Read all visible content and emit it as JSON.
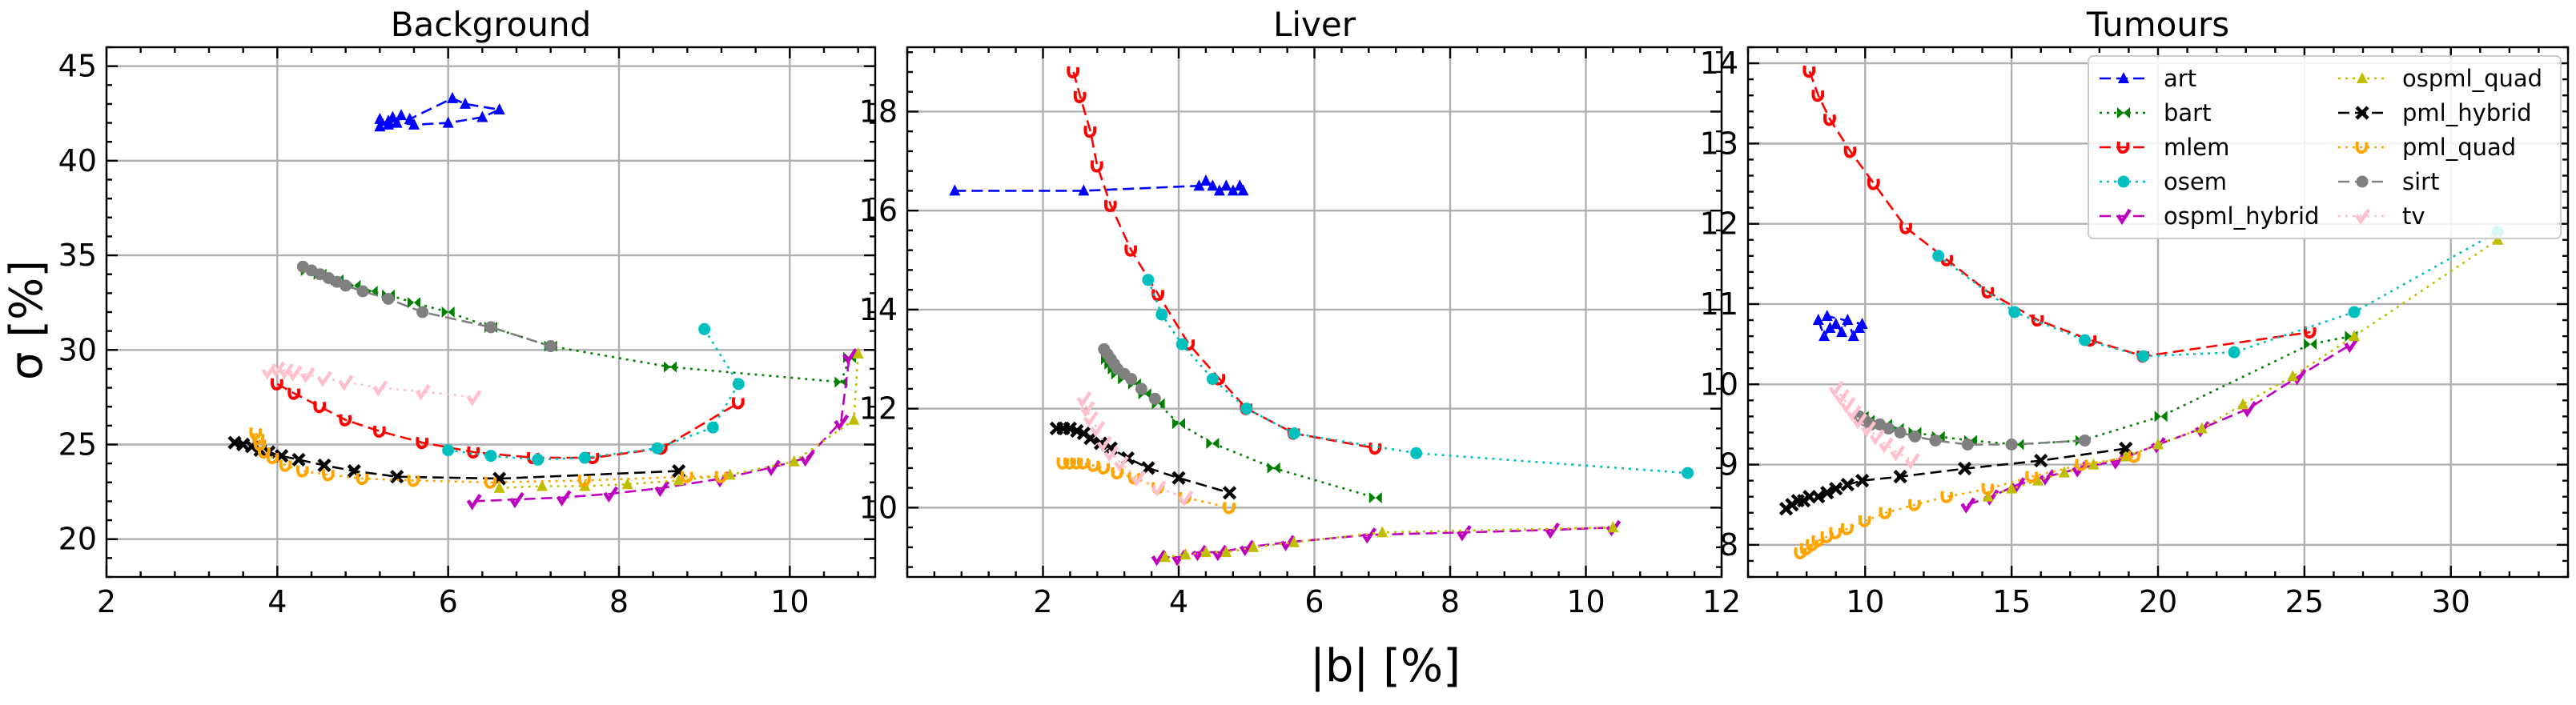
{
  "figure": {
    "shared_xlabel": "|b| [%]",
    "shared_ylabel": "σ [%]"
  },
  "legend": {
    "position": "upper right of Tumours panel",
    "entries": [
      {
        "name": "art",
        "color": "#0000ff",
        "dash": "dashed",
        "marker": "tri"
      },
      {
        "name": "bart",
        "color": "#008000",
        "dash": "dotted",
        "marker": "bowtie"
      },
      {
        "name": "mlem",
        "color": "#ff0000",
        "dash": "dashed",
        "marker": "hook"
      },
      {
        "name": "osem",
        "color": "#00bfbf",
        "dash": "dotted",
        "marker": "circle"
      },
      {
        "name": "ospml_hybrid",
        "color": "#bf00bf",
        "dash": "dashed",
        "marker": "tick"
      },
      {
        "name": "ospml_quad",
        "color": "#bfbf00",
        "dash": "dotted",
        "marker": "tri"
      },
      {
        "name": "pml_hybrid",
        "color": "#000000",
        "dash": "dashed",
        "marker": "x"
      },
      {
        "name": "pml_quad",
        "color": "#ffa500",
        "dash": "dotted",
        "marker": "hook"
      },
      {
        "name": "sirt",
        "color": "#808080",
        "dash": "dashed",
        "marker": "circle"
      },
      {
        "name": "tv",
        "color": "#ffc0cb",
        "dash": "dotted",
        "marker": "tick"
      }
    ]
  },
  "chart_data": [
    {
      "type": "line",
      "title": "Background",
      "xlabel": "|b| [%]",
      "ylabel": "σ [%]",
      "xlim": [
        2,
        11
      ],
      "ylim": [
        18,
        46
      ],
      "xticks": [
        "2",
        "4",
        "6",
        "8",
        "10"
      ],
      "yticks": [
        "20",
        "25",
        "30",
        "35",
        "40",
        "45"
      ],
      "xtick_values": [
        2,
        4,
        6,
        8,
        10
      ],
      "ytick_values": [
        20,
        25,
        30,
        35,
        40,
        45
      ],
      "grid": true,
      "series": [
        {
          "name": "art",
          "x": [
            5.2,
            5.3,
            5.35,
            5.4,
            5.45,
            5.3,
            5.2,
            5.6,
            6.0,
            6.4,
            6.6,
            6.2,
            6.05,
            5.55
          ],
          "y": [
            41.8,
            42.1,
            42.3,
            42.0,
            42.4,
            41.9,
            42.2,
            41.9,
            42.0,
            42.3,
            42.7,
            43.0,
            43.3,
            42.2
          ]
        },
        {
          "name": "bart",
          "x": [
            4.35,
            4.5,
            4.7,
            4.9,
            5.1,
            5.3,
            5.6,
            6.0,
            6.5,
            7.2,
            8.6,
            10.6,
            10.7
          ],
          "y": [
            34.2,
            34.0,
            33.7,
            33.4,
            33.1,
            32.9,
            32.5,
            32.0,
            31.2,
            30.2,
            29.1,
            28.3,
            29.6
          ]
        },
        {
          "name": "mlem",
          "x": [
            4.0,
            4.2,
            4.5,
            4.8,
            5.2,
            5.7,
            6.3,
            7.0,
            7.7,
            8.5,
            9.4
          ],
          "y": [
            28.2,
            27.7,
            27.0,
            26.3,
            25.7,
            25.1,
            24.6,
            24.3,
            24.3,
            24.8,
            27.2
          ]
        },
        {
          "name": "osem",
          "x": [
            6.0,
            6.5,
            7.05,
            7.6,
            8.45,
            9.1,
            9.4,
            9.0
          ],
          "y": [
            24.7,
            24.4,
            24.2,
            24.3,
            24.8,
            25.9,
            28.2,
            31.1
          ]
        },
        {
          "name": "ospml_hybrid",
          "x": [
            6.3,
            6.8,
            7.35,
            7.9,
            8.5,
            9.2,
            9.8,
            10.2,
            10.6,
            10.7
          ],
          "y": [
            22.0,
            22.1,
            22.2,
            22.4,
            22.7,
            23.2,
            23.8,
            24.3,
            26.2,
            29.7
          ]
        },
        {
          "name": "ospml_quad",
          "x": [
            6.6,
            7.1,
            7.6,
            8.1,
            8.7,
            9.3,
            10.05,
            10.75,
            10.8
          ],
          "y": [
            22.7,
            22.8,
            22.8,
            22.9,
            23.1,
            23.4,
            24.1,
            26.3,
            29.8
          ]
        },
        {
          "name": "pml_hybrid",
          "x": [
            3.5,
            3.6,
            3.7,
            3.8,
            3.9,
            4.05,
            4.25,
            4.55,
            4.9,
            5.4,
            6.6,
            8.7
          ],
          "y": [
            25.1,
            25.0,
            24.9,
            24.7,
            24.6,
            24.4,
            24.2,
            23.9,
            23.6,
            23.3,
            23.2,
            23.6
          ]
        },
        {
          "name": "pml_quad",
          "x": [
            3.75,
            3.78,
            3.8,
            3.85,
            3.95,
            4.1,
            4.3,
            4.6,
            5.0,
            5.6,
            6.5,
            7.6,
            8.8,
            9.2
          ],
          "y": [
            25.6,
            25.3,
            25.0,
            24.6,
            24.3,
            23.9,
            23.6,
            23.4,
            23.2,
            23.1,
            23.0,
            23.1,
            23.3,
            23.3
          ]
        },
        {
          "name": "sirt",
          "x": [
            4.3,
            4.4,
            4.5,
            4.6,
            4.7,
            4.8,
            5.0,
            5.3,
            5.7,
            6.5,
            7.2
          ],
          "y": [
            34.4,
            34.2,
            34.0,
            33.8,
            33.6,
            33.4,
            33.1,
            32.7,
            32.0,
            31.2,
            30.2
          ]
        },
        {
          "name": "tv",
          "x": [
            3.9,
            4.0,
            4.1,
            4.2,
            4.35,
            4.55,
            4.8,
            5.2,
            5.7,
            6.3
          ],
          "y": [
            28.9,
            29.0,
            28.9,
            28.8,
            28.7,
            28.5,
            28.3,
            28.0,
            27.8,
            27.5
          ]
        }
      ]
    },
    {
      "type": "line",
      "title": "Liver",
      "xlabel": "|b| [%]",
      "ylabel": "σ [%]",
      "xlim": [
        0,
        12
      ],
      "ylim": [
        8.6,
        19.3
      ],
      "xticks": [
        "2",
        "4",
        "6",
        "8",
        "10",
        "12"
      ],
      "yticks": [
        "10",
        "12",
        "14",
        "16",
        "18"
      ],
      "xtick_values": [
        2,
        4,
        6,
        8,
        10,
        12
      ],
      "ytick_values": [
        10,
        12,
        14,
        16,
        18
      ],
      "grid": true,
      "series": [
        {
          "name": "art",
          "x": [
            0.7,
            2.6,
            4.3,
            4.4,
            4.5,
            4.6,
            4.7,
            4.8,
            4.9,
            4.95
          ],
          "y": [
            16.4,
            16.4,
            16.5,
            16.6,
            16.5,
            16.4,
            16.5,
            16.4,
            16.5,
            16.4
          ]
        },
        {
          "name": "bart",
          "x": [
            2.95,
            3.0,
            3.05,
            3.1,
            3.2,
            3.35,
            3.5,
            3.7,
            4.0,
            4.5,
            5.4,
            6.9
          ],
          "y": [
            13.0,
            12.9,
            12.8,
            12.7,
            12.6,
            12.5,
            12.3,
            12.1,
            11.7,
            11.3,
            10.8,
            10.2
          ]
        },
        {
          "name": "mlem",
          "x": [
            2.45,
            2.55,
            2.7,
            2.8,
            3.0,
            3.3,
            3.7,
            4.15,
            4.6,
            5.0,
            5.7,
            6.9
          ],
          "y": [
            18.8,
            18.3,
            17.6,
            16.9,
            16.1,
            15.2,
            14.3,
            13.3,
            12.6,
            12.0,
            11.5,
            11.2
          ]
        },
        {
          "name": "osem",
          "x": [
            3.55,
            3.75,
            4.05,
            4.5,
            5.0,
            5.7,
            7.5,
            11.5
          ],
          "y": [
            14.6,
            13.9,
            13.3,
            12.6,
            12.0,
            11.5,
            11.1,
            10.7
          ]
        },
        {
          "name": "ospml_hybrid",
          "x": [
            3.7,
            4.0,
            4.3,
            4.6,
            5.0,
            5.6,
            6.8,
            8.2,
            9.5,
            10.4
          ],
          "y": [
            9.0,
            9.0,
            9.1,
            9.1,
            9.2,
            9.3,
            9.45,
            9.5,
            9.55,
            9.6
          ]
        },
        {
          "name": "ospml_quad",
          "x": [
            3.8,
            4.1,
            4.4,
            4.7,
            5.1,
            5.7,
            7.0,
            10.4
          ],
          "y": [
            9.0,
            9.05,
            9.1,
            9.1,
            9.2,
            9.3,
            9.5,
            9.6
          ]
        },
        {
          "name": "pml_hybrid",
          "x": [
            2.2,
            2.3,
            2.4,
            2.5,
            2.6,
            2.7,
            2.85,
            3.0,
            3.25,
            3.55,
            4.0,
            4.75
          ],
          "y": [
            11.6,
            11.6,
            11.6,
            11.55,
            11.5,
            11.4,
            11.3,
            11.2,
            11.0,
            10.8,
            10.6,
            10.3
          ]
        },
        {
          "name": "pml_quad",
          "x": [
            2.3,
            2.4,
            2.5,
            2.6,
            2.75,
            2.9,
            3.1,
            3.35,
            3.7,
            4.1,
            4.75
          ],
          "y": [
            10.9,
            10.9,
            10.9,
            10.9,
            10.85,
            10.8,
            10.7,
            10.6,
            10.4,
            10.2,
            10.0
          ]
        },
        {
          "name": "sirt",
          "x": [
            2.9,
            2.95,
            3.0,
            3.05,
            3.1,
            3.2,
            3.3,
            3.45,
            3.65
          ],
          "y": [
            13.2,
            13.1,
            13.0,
            12.9,
            12.8,
            12.7,
            12.6,
            12.4,
            12.2
          ]
        },
        {
          "name": "tv",
          "x": [
            2.6,
            2.65,
            2.7,
            2.8,
            2.9,
            3.0,
            3.15,
            3.4,
            3.7,
            4.1
          ],
          "y": [
            12.2,
            12.0,
            11.8,
            11.6,
            11.3,
            11.1,
            10.9,
            10.6,
            10.4,
            10.2
          ]
        }
      ]
    },
    {
      "type": "line",
      "title": "Tumours",
      "xlabel": "|b| [%]",
      "ylabel": "σ [%]",
      "xlim": [
        6,
        34
      ],
      "ylim": [
        7.6,
        14.2
      ],
      "xticks": [
        "10",
        "15",
        "20",
        "25",
        "30"
      ],
      "yticks": [
        "8",
        "9",
        "10",
        "11",
        "12",
        "13",
        "14"
      ],
      "xtick_values": [
        10,
        15,
        20,
        25,
        30
      ],
      "ytick_values": [
        8,
        9,
        10,
        11,
        12,
        13,
        14
      ],
      "grid": true,
      "series": [
        {
          "name": "art",
          "x": [
            8.4,
            8.6,
            8.8,
            9.0,
            9.2,
            9.4,
            9.6,
            9.8,
            9.9,
            8.7
          ],
          "y": [
            10.8,
            10.6,
            10.7,
            10.75,
            10.65,
            10.8,
            10.6,
            10.7,
            10.75,
            10.85
          ]
        },
        {
          "name": "bart",
          "x": [
            9.9,
            10.1,
            10.4,
            10.7,
            11.1,
            11.7,
            12.5,
            13.6,
            15.2,
            17.4,
            20.1,
            25.2,
            26.6
          ],
          "y": [
            9.6,
            9.55,
            9.5,
            9.5,
            9.45,
            9.4,
            9.35,
            9.3,
            9.25,
            9.3,
            9.6,
            10.5,
            10.6
          ]
        },
        {
          "name": "mlem",
          "x": [
            8.1,
            8.4,
            8.8,
            9.5,
            10.3,
            11.4,
            12.8,
            14.2,
            15.9,
            17.7,
            19.5,
            25.2
          ],
          "y": [
            13.9,
            13.6,
            13.3,
            12.9,
            12.5,
            11.95,
            11.55,
            11.15,
            10.8,
            10.55,
            10.35,
            10.65
          ]
        },
        {
          "name": "osem",
          "x": [
            12.5,
            15.1,
            17.5,
            19.5,
            22.6,
            26.7,
            31.6
          ],
          "y": [
            11.6,
            10.9,
            10.55,
            10.35,
            10.4,
            10.9,
            11.9
          ]
        },
        {
          "name": "ospml_hybrid",
          "x": [
            13.5,
            14.3,
            15.2,
            16.2,
            17.3,
            18.6,
            20.0,
            21.5,
            23.1,
            24.8,
            26.6
          ],
          "y": [
            8.5,
            8.6,
            8.75,
            8.85,
            8.95,
            9.05,
            9.25,
            9.45,
            9.7,
            10.1,
            10.5
          ]
        },
        {
          "name": "ospml_quad",
          "x": [
            14.2,
            15.0,
            15.9,
            16.8,
            17.8,
            18.9,
            20.0,
            21.5,
            22.9,
            24.6,
            26.7,
            31.6
          ],
          "y": [
            8.6,
            8.7,
            8.8,
            8.9,
            9.0,
            9.1,
            9.25,
            9.45,
            9.75,
            10.1,
            10.6,
            11.8
          ]
        },
        {
          "name": "pml_hybrid",
          "x": [
            7.3,
            7.5,
            7.7,
            7.9,
            8.1,
            8.4,
            8.7,
            9.0,
            9.4,
            9.9,
            11.2,
            13.4,
            16.0,
            18.9
          ],
          "y": [
            8.45,
            8.5,
            8.55,
            8.55,
            8.6,
            8.6,
            8.65,
            8.7,
            8.75,
            8.8,
            8.85,
            8.95,
            9.05,
            9.2
          ]
        },
        {
          "name": "pml_quad",
          "x": [
            7.8,
            8.0,
            8.2,
            8.4,
            8.7,
            9.0,
            9.4,
            10.0,
            10.7,
            11.7,
            12.8,
            14.2,
            15.7,
            17.4,
            19.2
          ],
          "y": [
            7.9,
            7.95,
            8.0,
            8.05,
            8.1,
            8.15,
            8.2,
            8.3,
            8.4,
            8.5,
            8.6,
            8.7,
            8.85,
            9.0,
            9.1
          ]
        },
        {
          "name": "sirt",
          "x": [
            9.8,
            10.0,
            10.2,
            10.5,
            10.8,
            11.2,
            11.7,
            12.4,
            13.5,
            15.0,
            17.5
          ],
          "y": [
            9.6,
            9.55,
            9.5,
            9.5,
            9.45,
            9.4,
            9.35,
            9.3,
            9.25,
            9.25,
            9.3
          ]
        },
        {
          "name": "tv",
          "x": [
            9.0,
            9.2,
            9.4,
            9.6,
            9.8,
            10.1,
            10.4,
            10.7,
            11.1,
            11.6
          ],
          "y": [
            9.95,
            9.85,
            9.75,
            9.65,
            9.55,
            9.45,
            9.35,
            9.25,
            9.15,
            9.05
          ]
        }
      ]
    }
  ]
}
